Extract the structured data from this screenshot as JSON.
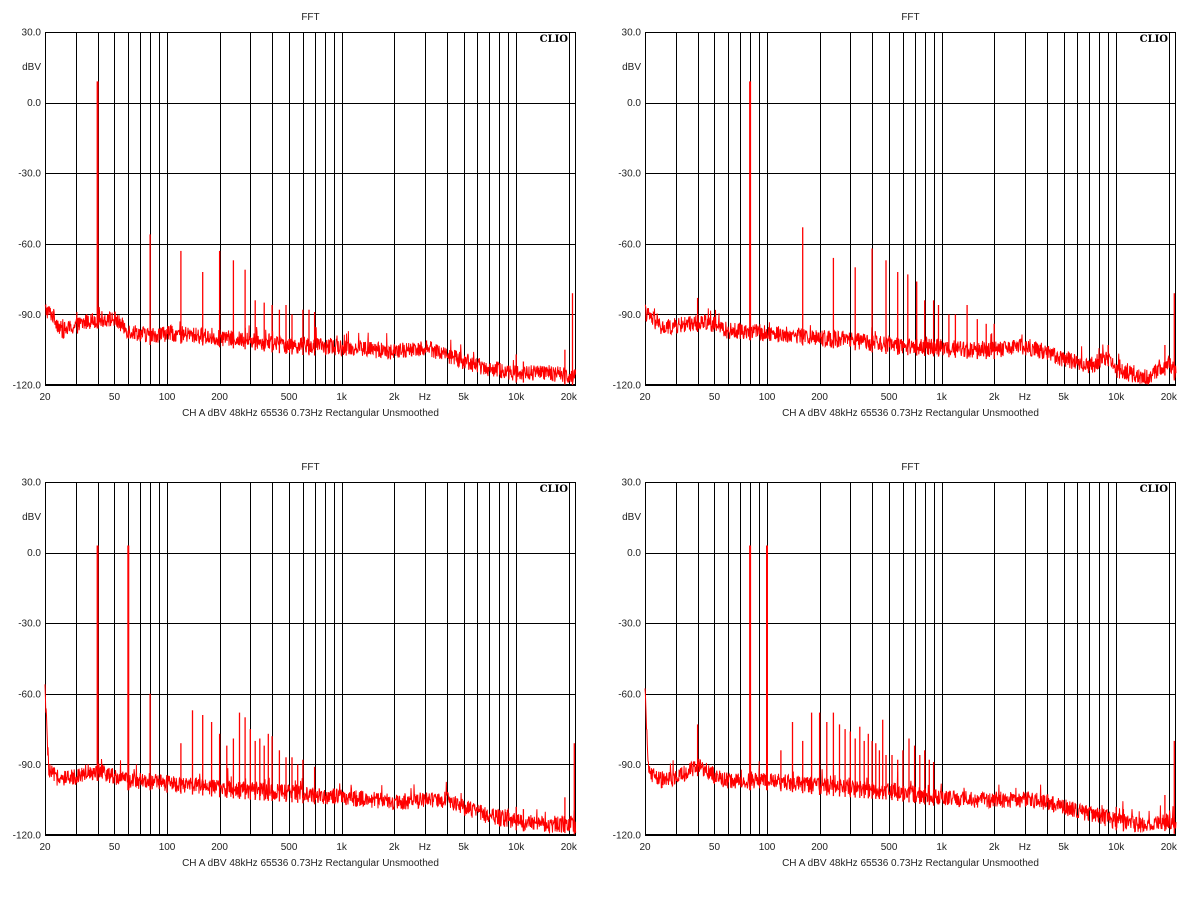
{
  "colors": {
    "trace": "#ff0000",
    "grid": "#000000",
    "background": "#ffffff"
  },
  "chart_data": [
    {
      "type": "line",
      "title": "FFT",
      "brand": "CLIO",
      "ylabel": "dBV",
      "xlabel": "Hz",
      "x_scale": "log",
      "xlim": [
        20,
        22000
      ],
      "ylim": [
        -120,
        30
      ],
      "x_ticks": [
        20,
        50,
        100,
        200,
        500,
        1000,
        2000,
        5000,
        10000,
        20000
      ],
      "x_tick_labels": [
        "20",
        "50",
        "100",
        "200",
        "500",
        "1k",
        "2k",
        "5k",
        "10k",
        "20k"
      ],
      "y_ticks": [
        30,
        0,
        -30,
        -60,
        -90,
        -120
      ],
      "y_tick_labels": [
        "30.0",
        "0.0",
        "-30.0",
        "-60.0",
        "-90.0",
        "-120.0"
      ],
      "info_line": "CH A   dBV   48kHz   65536   0.73Hz   Rectangular   Unsmoothed",
      "grid": true,
      "series": [
        {
          "floor": [
            [
              20,
              -88
            ],
            [
              22,
              -90
            ],
            [
              25,
              -97
            ],
            [
              30,
              -95
            ],
            [
              35,
              -93
            ],
            [
              40,
              -92
            ],
            [
              50,
              -92
            ],
            [
              60,
              -97
            ],
            [
              80,
              -99
            ],
            [
              100,
              -98
            ],
            [
              150,
              -99
            ],
            [
              200,
              -100
            ],
            [
              300,
              -101
            ],
            [
              500,
              -103
            ],
            [
              1000,
              -104
            ],
            [
              1500,
              -105
            ],
            [
              2000,
              -106
            ],
            [
              3000,
              -104
            ],
            [
              4000,
              -107
            ],
            [
              5000,
              -110
            ],
            [
              7000,
              -113
            ],
            [
              10000,
              -115
            ],
            [
              15000,
              -115
            ],
            [
              20000,
              -116
            ],
            [
              22000,
              -116
            ]
          ],
          "peaks": [
            [
              40,
              9
            ],
            [
              80,
              -56
            ],
            [
              120,
              -63
            ],
            [
              160,
              -72
            ],
            [
              200,
              -63
            ],
            [
              240,
              -67
            ],
            [
              280,
              -71
            ],
            [
              320,
              -84
            ],
            [
              360,
              -85
            ],
            [
              400,
              -86
            ],
            [
              440,
              -88
            ],
            [
              480,
              -86
            ],
            [
              520,
              -90
            ],
            [
              600,
              -88
            ],
            [
              650,
              -88
            ],
            [
              700,
              -89
            ],
            [
              10000,
              -107
            ],
            [
              11000,
              -110
            ],
            [
              19000,
              -105
            ],
            [
              21000,
              -81
            ]
          ]
        }
      ]
    },
    {
      "type": "line",
      "title": "FFT",
      "brand": "CLIO",
      "ylabel": "dBV",
      "xlabel": "Hz",
      "x_scale": "log",
      "xlim": [
        20,
        22000
      ],
      "ylim": [
        -120,
        30
      ],
      "x_ticks": [
        20,
        50,
        100,
        200,
        500,
        1000,
        2000,
        5000,
        10000,
        20000
      ],
      "x_tick_labels": [
        "20",
        "50",
        "100",
        "200",
        "500",
        "1k",
        "2k",
        "5k",
        "10k",
        "20k"
      ],
      "y_ticks": [
        30,
        0,
        -30,
        -60,
        -90,
        -120
      ],
      "y_tick_labels": [
        "30.0",
        "0.0",
        "-30.0",
        "-60.0",
        "-90.0",
        "-120.0"
      ],
      "info_line": "CH A   dBV   48kHz   65536   0.73Hz   Rectangular   Unsmoothed",
      "grid": true,
      "series": [
        {
          "floor": [
            [
              20,
              -89
            ],
            [
              25,
              -96
            ],
            [
              30,
              -95
            ],
            [
              35,
              -94
            ],
            [
              45,
              -93
            ],
            [
              60,
              -97
            ],
            [
              80,
              -97
            ],
            [
              100,
              -98
            ],
            [
              150,
              -99
            ],
            [
              200,
              -100
            ],
            [
              300,
              -101
            ],
            [
              500,
              -103
            ],
            [
              1000,
              -104
            ],
            [
              1500,
              -105
            ],
            [
              2000,
              -105
            ],
            [
              3000,
              -104
            ],
            [
              4000,
              -106
            ],
            [
              5000,
              -109
            ],
            [
              7000,
              -112
            ],
            [
              9000,
              -108
            ],
            [
              10000,
              -114
            ],
            [
              15000,
              -117
            ],
            [
              18000,
              -113
            ],
            [
              20000,
              -111
            ],
            [
              22000,
              -115
            ]
          ],
          "peaks": [
            [
              40,
              -83
            ],
            [
              80,
              9
            ],
            [
              160,
              -53
            ],
            [
              240,
              -66
            ],
            [
              320,
              -70
            ],
            [
              400,
              -62
            ],
            [
              480,
              -67
            ],
            [
              560,
              -72
            ],
            [
              640,
              -73
            ],
            [
              720,
              -76
            ],
            [
              800,
              -84
            ],
            [
              900,
              -84
            ],
            [
              960,
              -86
            ],
            [
              1100,
              -90
            ],
            [
              1200,
              -90
            ],
            [
              1400,
              -86
            ],
            [
              1600,
              -92
            ],
            [
              1800,
              -94
            ],
            [
              2000,
              -94
            ],
            [
              9000,
              -103
            ],
            [
              19000,
              -103
            ],
            [
              21500,
              -81
            ]
          ]
        }
      ]
    },
    {
      "type": "line",
      "title": "FFT",
      "brand": "CLIO",
      "ylabel": "dBV",
      "xlabel": "Hz",
      "x_scale": "log",
      "xlim": [
        20,
        22000
      ],
      "ylim": [
        -120,
        30
      ],
      "x_ticks": [
        20,
        50,
        100,
        200,
        500,
        1000,
        2000,
        5000,
        10000,
        20000
      ],
      "x_tick_labels": [
        "20",
        "50",
        "100",
        "200",
        "500",
        "1k",
        "2k",
        "5k",
        "10k",
        "20k"
      ],
      "y_ticks": [
        30,
        0,
        -30,
        -60,
        -90,
        -120
      ],
      "y_tick_labels": [
        "30.0",
        "0.0",
        "-30.0",
        "-60.0",
        "-90.0",
        "-120.0"
      ],
      "info_line": "CH A   dBV   48kHz   65536   0.73Hz   Rectangular   Unsmoothed",
      "grid": true,
      "series": [
        {
          "floor": [
            [
              20,
              -58
            ],
            [
              21,
              -93
            ],
            [
              25,
              -97
            ],
            [
              30,
              -95
            ],
            [
              35,
              -93
            ],
            [
              40,
              -93
            ],
            [
              50,
              -95
            ],
            [
              60,
              -97
            ],
            [
              80,
              -97
            ],
            [
              100,
              -98
            ],
            [
              150,
              -99
            ],
            [
              200,
              -100
            ],
            [
              300,
              -101
            ],
            [
              500,
              -102
            ],
            [
              1000,
              -104
            ],
            [
              1500,
              -105
            ],
            [
              2000,
              -106
            ],
            [
              3000,
              -105
            ],
            [
              4000,
              -105
            ],
            [
              5000,
              -108
            ],
            [
              7000,
              -112
            ],
            [
              10000,
              -114
            ],
            [
              15000,
              -116
            ],
            [
              20000,
              -115
            ],
            [
              22000,
              -116
            ]
          ],
          "peaks": [
            [
              40,
              3
            ],
            [
              60,
              3
            ],
            [
              80,
              -60
            ],
            [
              100,
              -95
            ],
            [
              120,
              -81
            ],
            [
              140,
              -67
            ],
            [
              160,
              -69
            ],
            [
              180,
              -72
            ],
            [
              200,
              -77
            ],
            [
              220,
              -82
            ],
            [
              240,
              -79
            ],
            [
              260,
              -68
            ],
            [
              280,
              -70
            ],
            [
              300,
              -75
            ],
            [
              320,
              -80
            ],
            [
              340,
              -79
            ],
            [
              360,
              -82
            ],
            [
              380,
              -77
            ],
            [
              400,
              -78
            ],
            [
              440,
              -84
            ],
            [
              480,
              -87
            ],
            [
              520,
              -87
            ],
            [
              560,
              -90
            ],
            [
              600,
              -88
            ],
            [
              700,
              -91
            ],
            [
              10000,
              -108
            ],
            [
              11000,
              -109
            ],
            [
              19000,
              -104
            ],
            [
              21500,
              -81
            ]
          ]
        }
      ]
    },
    {
      "type": "line",
      "title": "FFT",
      "brand": "CLIO",
      "ylabel": "dBV",
      "xlabel": "Hz",
      "x_scale": "log",
      "xlim": [
        20,
        22000
      ],
      "ylim": [
        -120,
        30
      ],
      "x_ticks": [
        20,
        50,
        100,
        200,
        500,
        1000,
        2000,
        5000,
        10000,
        20000
      ],
      "x_tick_labels": [
        "20",
        "50",
        "100",
        "200",
        "500",
        "1k",
        "2k",
        "5k",
        "10k",
        "20k"
      ],
      "y_ticks": [
        30,
        0,
        -30,
        -60,
        -90,
        -120
      ],
      "y_tick_labels": [
        "30.0",
        "0.0",
        "-30.0",
        "-60.0",
        "-90.0",
        "-120.0"
      ],
      "info_line": "CH A   dBV   48kHz   65536   0.73Hz   Rectangular   Unsmoothed",
      "grid": true,
      "series": [
        {
          "floor": [
            [
              20,
              -60
            ],
            [
              21,
              -93
            ],
            [
              25,
              -97
            ],
            [
              30,
              -96
            ],
            [
              35,
              -93
            ],
            [
              40,
              -91
            ],
            [
              45,
              -92
            ],
            [
              50,
              -95
            ],
            [
              60,
              -97
            ],
            [
              80,
              -97
            ],
            [
              100,
              -97
            ],
            [
              150,
              -98
            ],
            [
              200,
              -99
            ],
            [
              300,
              -100
            ],
            [
              500,
              -101
            ],
            [
              1000,
              -104
            ],
            [
              1500,
              -105
            ],
            [
              2000,
              -105
            ],
            [
              3000,
              -105
            ],
            [
              4000,
              -106
            ],
            [
              5000,
              -108
            ],
            [
              7000,
              -111
            ],
            [
              10000,
              -114
            ],
            [
              15000,
              -116
            ],
            [
              20000,
              -114
            ],
            [
              22000,
              -116
            ]
          ],
          "peaks": [
            [
              40,
              -73
            ],
            [
              80,
              3
            ],
            [
              100,
              3
            ],
            [
              120,
              -84
            ],
            [
              140,
              -72
            ],
            [
              160,
              -80
            ],
            [
              180,
              -68
            ],
            [
              200,
              -68
            ],
            [
              220,
              -72
            ],
            [
              240,
              -68
            ],
            [
              260,
              -73
            ],
            [
              280,
              -75
            ],
            [
              300,
              -76
            ],
            [
              320,
              -79
            ],
            [
              340,
              -74
            ],
            [
              360,
              -80
            ],
            [
              380,
              -77
            ],
            [
              400,
              -80
            ],
            [
              420,
              -81
            ],
            [
              440,
              -84
            ],
            [
              460,
              -71
            ],
            [
              480,
              -86
            ],
            [
              520,
              -86
            ],
            [
              560,
              -88
            ],
            [
              600,
              -84
            ],
            [
              650,
              -79
            ],
            [
              700,
              -82
            ],
            [
              750,
              -86
            ],
            [
              800,
              -84
            ],
            [
              850,
              -88
            ],
            [
              900,
              -89
            ],
            [
              10000,
              -108
            ],
            [
              11000,
              -109
            ],
            [
              19000,
              -103
            ],
            [
              21500,
              -80
            ]
          ]
        }
      ]
    }
  ]
}
